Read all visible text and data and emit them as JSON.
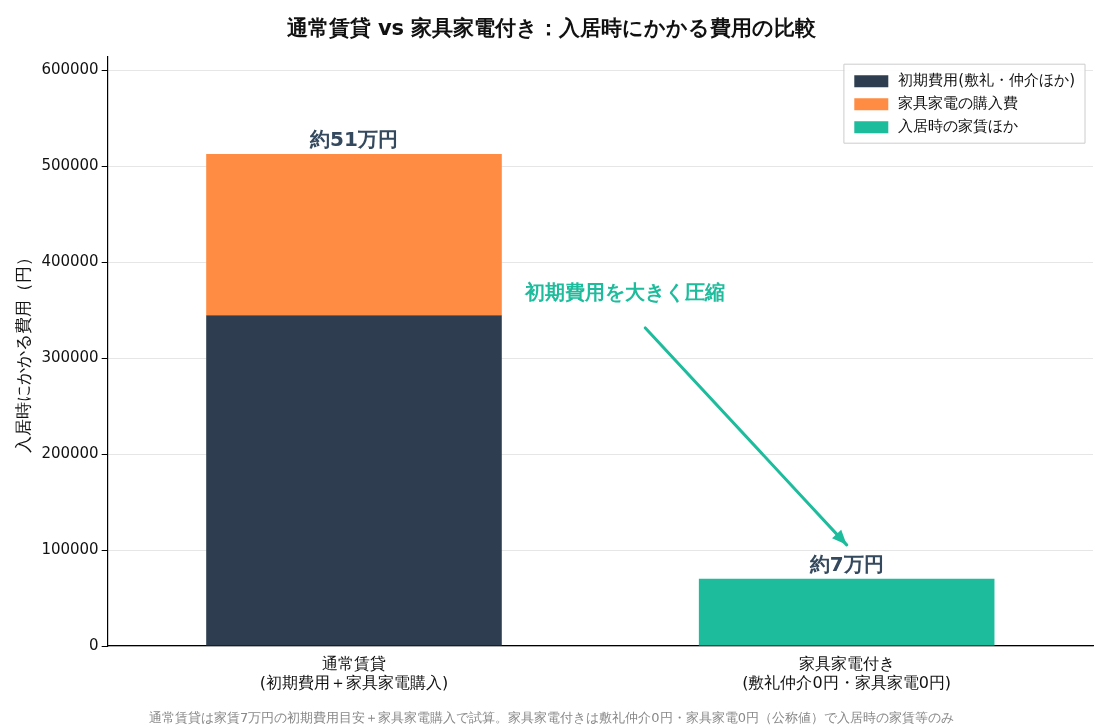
{
  "chart_data": {
    "type": "bar",
    "title": "通常賃貸 vs 家具家電付き：入居時にかかる費用の比較",
    "ylabel": "入居時にかかる費用（円）",
    "categories": [
      "通常賃貸\n(初期費用＋家具家電購入)",
      "家具家電付き\n(敷礼仲介0円・家具家電0円)"
    ],
    "stacked": true,
    "series": [
      {
        "name": "初期費用(敷礼・仲介ほか)",
        "color": "#2e3e50",
        "values": [
          345000,
          null
        ]
      },
      {
        "name": "家具家電の購入費",
        "color": "#ff8c42",
        "values": [
          168000,
          null
        ]
      },
      {
        "name": "入居時の家賃ほか",
        "color": "#1dbc9c",
        "values": [
          null,
          70000
        ]
      }
    ],
    "totals": [
      "約51万円",
      "約7万円"
    ],
    "ylim": [
      0,
      615000
    ],
    "yticks": [
      0,
      100000,
      200000,
      300000,
      400000,
      500000,
      600000
    ],
    "grid": "y",
    "legend": "top right",
    "annotations": [
      "初期費用を大きく圧縮",
      "通常賃貸は家賃7万円の初期費用目安＋家具家電購入で試算。家具家電付きは敷礼仲介0円・家具家電0円（公称値）で入居時の家賃等のみ"
    ]
  }
}
